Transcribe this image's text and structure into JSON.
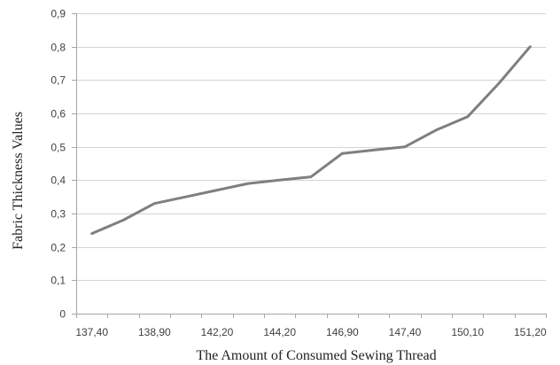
{
  "chart_data": {
    "type": "line",
    "title": "",
    "xlabel": "The Amount of Consumed Sewing Thread",
    "ylabel": "Fabric Thickness Values",
    "x": [
      "137,40",
      "",
      "138,90",
      "",
      "142,20",
      "",
      "144,20",
      "",
      "146,90",
      "",
      "147,40",
      "",
      "150,10",
      "",
      "151,20"
    ],
    "x_tick_labels": [
      "137,40",
      "138,90",
      "142,20",
      "144,20",
      "146,90",
      "147,40",
      "150,10",
      "151,20"
    ],
    "series": [
      {
        "values": [
          0.24,
          0.28,
          0.33,
          0.35,
          0.37,
          0.39,
          0.4,
          0.41,
          0.48,
          0.49,
          0.5,
          0.55,
          0.59,
          0.69,
          0.8
        ]
      }
    ],
    "ylim": [
      0,
      0.9
    ],
    "y_ticks": [
      0,
      0.1,
      0.2,
      0.3,
      0.4,
      0.5,
      0.6,
      0.7,
      0.8,
      0.9
    ],
    "y_tick_labels": [
      "0",
      "0,1",
      "0,2",
      "0,3",
      "0,4",
      "0,5",
      "0,6",
      "0,7",
      "0,8",
      "0,9"
    ],
    "grid": true,
    "legend": "none",
    "line_color": "#7f7f7f"
  }
}
